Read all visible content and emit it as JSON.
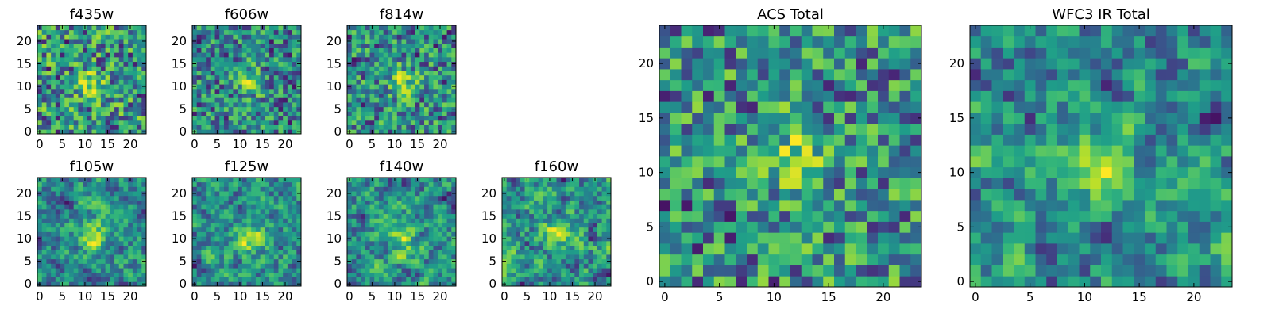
{
  "chart_data": [
    {
      "type": "heatmap",
      "title": "f435w",
      "xticks": [
        "0",
        "5",
        "10",
        "15",
        "20"
      ],
      "yticks": [
        "0",
        "5",
        "10",
        "15",
        "20"
      ],
      "xlim": [
        0,
        24
      ],
      "ylim": [
        0,
        24
      ],
      "grid_size": 24,
      "colormap": "viridis",
      "texture": "noisy",
      "bright_center": [
        11,
        10
      ],
      "grid": false
    },
    {
      "type": "heatmap",
      "title": "f606w",
      "xticks": [
        "0",
        "5",
        "10",
        "15",
        "20"
      ],
      "yticks": [
        "0",
        "5",
        "10",
        "15",
        "20"
      ],
      "xlim": [
        0,
        24
      ],
      "ylim": [
        0,
        24
      ],
      "grid_size": 24,
      "colormap": "viridis",
      "texture": "noisy",
      "bright_center": [
        12,
        11
      ],
      "grid": false
    },
    {
      "type": "heatmap",
      "title": "f814w",
      "xticks": [
        "0",
        "5",
        "10",
        "15",
        "20"
      ],
      "yticks": [
        "0",
        "5",
        "10",
        "15",
        "20"
      ],
      "xlim": [
        0,
        24
      ],
      "ylim": [
        0,
        24
      ],
      "grid_size": 24,
      "colormap": "viridis",
      "texture": "noisy",
      "bright_center": [
        12,
        11
      ],
      "grid": false
    },
    {
      "type": "heatmap",
      "title": "f105w",
      "xticks": [
        "0",
        "5",
        "10",
        "15",
        "20"
      ],
      "yticks": [
        "0",
        "5",
        "10",
        "15",
        "20"
      ],
      "xlim": [
        0,
        24
      ],
      "ylim": [
        0,
        24
      ],
      "grid_size": 24,
      "colormap": "viridis",
      "texture": "smooth",
      "bright_center": [
        12,
        10
      ],
      "grid": false
    },
    {
      "type": "heatmap",
      "title": "f125w",
      "xticks": [
        "0",
        "5",
        "10",
        "15",
        "20"
      ],
      "yticks": [
        "0",
        "5",
        "10",
        "15",
        "20"
      ],
      "xlim": [
        0,
        24
      ],
      "ylim": [
        0,
        24
      ],
      "grid_size": 24,
      "colormap": "viridis",
      "texture": "smooth",
      "bright_center": [
        12,
        10
      ],
      "grid": false
    },
    {
      "type": "heatmap",
      "title": "f140w",
      "xticks": [
        "0",
        "5",
        "10",
        "15",
        "20"
      ],
      "yticks": [
        "0",
        "5",
        "10",
        "15",
        "20"
      ],
      "xlim": [
        0,
        24
      ],
      "ylim": [
        0,
        24
      ],
      "grid_size": 24,
      "colormap": "viridis",
      "texture": "smooth",
      "bright_center": [
        12,
        10
      ],
      "grid": false
    },
    {
      "type": "heatmap",
      "title": "f160w",
      "xticks": [
        "0",
        "5",
        "10",
        "15",
        "20"
      ],
      "yticks": [
        "0",
        "5",
        "10",
        "15",
        "20"
      ],
      "xlim": [
        0,
        24
      ],
      "ylim": [
        0,
        24
      ],
      "grid_size": 24,
      "colormap": "viridis",
      "texture": "smooth",
      "bright_center": [
        12,
        12
      ],
      "grid": false
    },
    {
      "type": "heatmap",
      "title": "ACS Total",
      "xticks": [
        "0",
        "5",
        "10",
        "15",
        "20"
      ],
      "yticks": [
        "0",
        "5",
        "10",
        "15",
        "20"
      ],
      "xlim": [
        0,
        24
      ],
      "ylim": [
        0,
        24
      ],
      "grid_size": 24,
      "colormap": "viridis",
      "texture": "noisy",
      "bright_center": [
        12,
        11
      ],
      "grid": false
    },
    {
      "type": "heatmap",
      "title": "WFC3 IR Total",
      "xticks": [
        "0",
        "5",
        "10",
        "15",
        "20"
      ],
      "yticks": [
        "0",
        "5",
        "10",
        "15",
        "20"
      ],
      "xlim": [
        0,
        24
      ],
      "ylim": [
        0,
        24
      ],
      "grid_size": 24,
      "colormap": "viridis",
      "texture": "smooth",
      "bright_center": [
        12,
        11
      ],
      "grid": false
    }
  ]
}
